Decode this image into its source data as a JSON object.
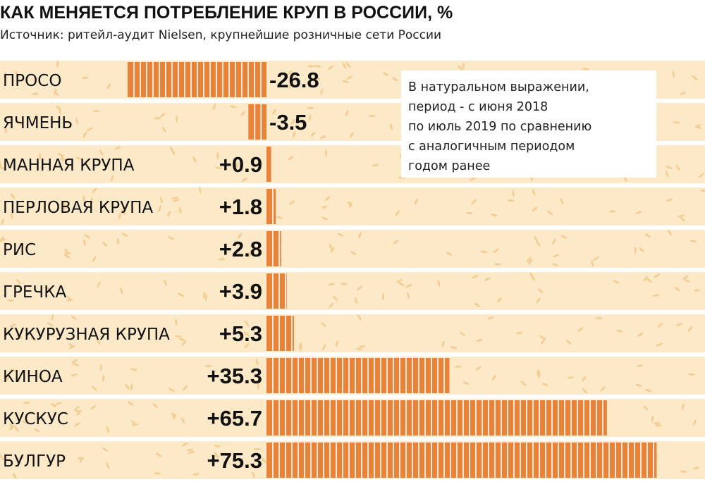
{
  "title": "КАК МЕНЯЕТСЯ ПОТРЕБЛЕНИЕ КРУП В РОССИИ, %",
  "subtitle": "Источник: ритейл-аудит Nielsen, крупнейшие розничные сети России",
  "note": [
    "В натуральном выражении,",
    "период - с июня 2018",
    "по июль 2019 по сравнению",
    "с аналогичным периодом",
    "годом ранее"
  ],
  "colors": {
    "bar": "#e8833a",
    "row_band": "#fce9c8",
    "grain": "#f3cf98",
    "text": "#111111"
  },
  "chart_data": {
    "type": "bar",
    "orientation": "horizontal",
    "categories": [
      "ПРОСО",
      "ЯЧМЕНЬ",
      "МАННАЯ КРУПА",
      "ПЕРЛОВАЯ КРУПА",
      "РИС",
      "ГРЕЧКА",
      "КУКУРУЗНАЯ КРУПА",
      "КИНОА",
      "КУСКУС",
      "БУЛГУР"
    ],
    "values": [
      -26.8,
      -3.5,
      0.9,
      1.8,
      2.8,
      3.9,
      5.3,
      35.3,
      65.7,
      75.3
    ],
    "value_labels": [
      "-26.8",
      "-3.5",
      "+0.9",
      "+1.8",
      "+2.8",
      "+3.9",
      "+5.3",
      "+35.3",
      "+65.7",
      "+75.3"
    ],
    "title": "КАК МЕНЯЕТСЯ ПОТРЕБЛЕНИЕ КРУП В РОССИИ, %",
    "xlim": [
      -30,
      78
    ],
    "grid": false,
    "legend": "none"
  }
}
